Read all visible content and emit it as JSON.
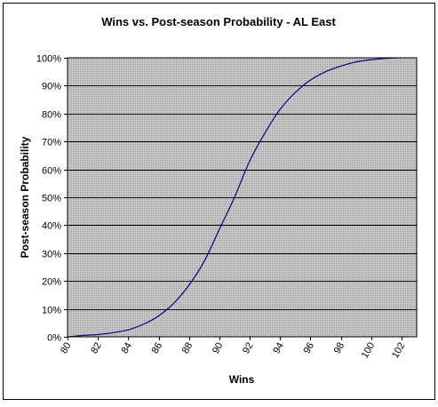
{
  "chart_data": {
    "type": "line",
    "title": "Wins vs. Post-season Probability - AL East",
    "xlabel": "Wins",
    "ylabel": "Post-season Probability",
    "xlim": [
      80,
      103
    ],
    "ylim": [
      0,
      100
    ],
    "x_ticks": [
      80,
      82,
      84,
      86,
      88,
      90,
      92,
      94,
      96,
      98,
      100,
      102
    ],
    "x_tick_labels": [
      "80",
      "82",
      "84",
      "86",
      "88",
      "90",
      "92",
      "94",
      "96",
      "98",
      "100",
      "102"
    ],
    "y_ticks": [
      0,
      10,
      20,
      30,
      40,
      50,
      60,
      70,
      80,
      90,
      100
    ],
    "y_tick_labels": [
      "0%",
      "10%",
      "20%",
      "30%",
      "40%",
      "50%",
      "60%",
      "70%",
      "80%",
      "90%",
      "100%"
    ],
    "grid": "horizontal",
    "legend": "none",
    "colors": {
      "line": "#000080",
      "plot_background": "#c0c0c0",
      "gridline": "#000000",
      "frame": "#000000"
    },
    "series": [
      {
        "x": [
          80,
          81,
          82,
          83,
          84,
          85,
          86,
          87,
          88,
          89,
          90,
          91,
          92,
          93,
          94,
          95,
          96,
          97,
          98,
          99,
          100,
          101,
          102
        ],
        "values": [
          0,
          0.5,
          0.8,
          1.5,
          2.5,
          4.5,
          7.5,
          12,
          18.5,
          27,
          38.5,
          50,
          63,
          73,
          81.5,
          87.5,
          92,
          95,
          97,
          98.5,
          99.3,
          99.8,
          100
        ]
      }
    ]
  }
}
